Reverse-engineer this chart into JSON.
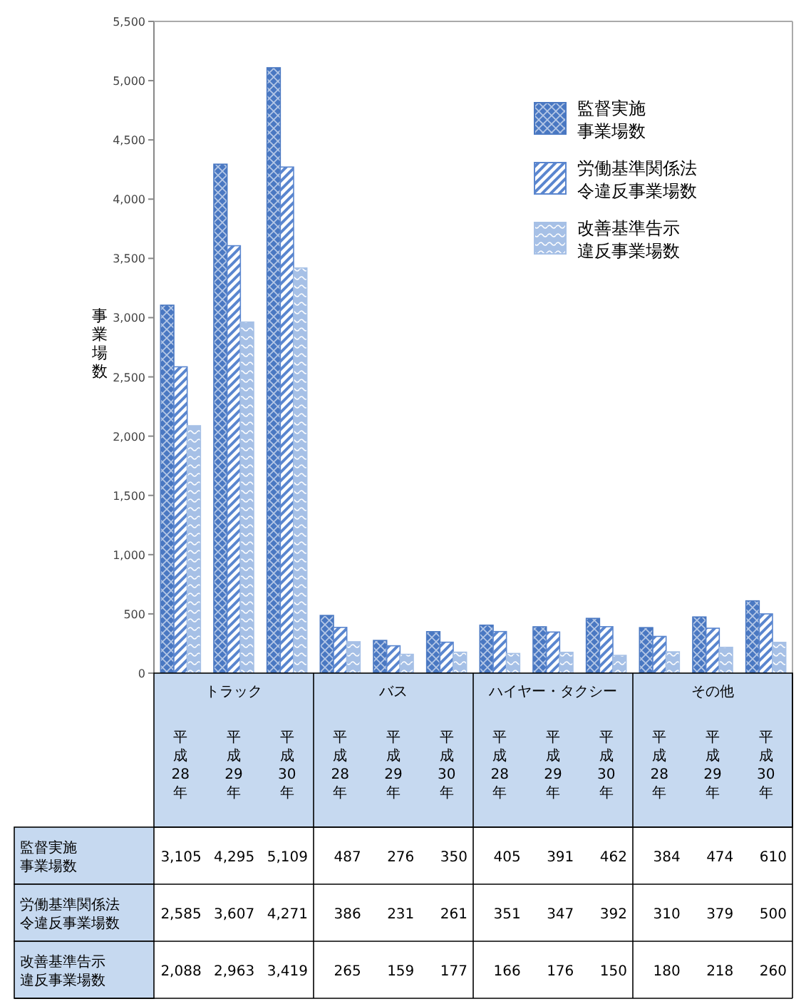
{
  "chart_data": {
    "type": "bar",
    "ylabel": "事業場数",
    "categories": [
      "平成28年",
      "平成29年",
      "平成30年",
      "平成28年",
      "平成29年",
      "平成30年",
      "平成28年",
      "平成29年",
      "平成30年",
      "平成28年",
      "平成29年",
      "平成30年"
    ],
    "annotations": [
      "トラック",
      "バス",
      "ハイヤー・タクシー",
      "その他"
    ],
    "series": [
      {
        "name": "監督実施事業場数",
        "color": "#4a78c2",
        "values": [
          3105,
          4295,
          5109,
          487,
          276,
          350,
          405,
          391,
          462,
          384,
          474,
          610
        ],
        "value_labels": [
          "3,105",
          "4,295",
          "5,109",
          "487",
          "276",
          "350",
          "405",
          "391",
          "462",
          "384",
          "474",
          "610"
        ]
      },
      {
        "name": "労働基準関係法令違反事業場数",
        "color": "#5a86cf",
        "values": [
          2585,
          3607,
          4271,
          386,
          231,
          261,
          351,
          347,
          392,
          310,
          379,
          500
        ],
        "value_labels": [
          "2,585",
          "3,607",
          "4,271",
          "386",
          "231",
          "261",
          "351",
          "347",
          "392",
          "310",
          "379",
          "500"
        ]
      },
      {
        "name": "改善基準告示違反事業場数",
        "color": "#a6c0e6",
        "values": [
          2088,
          2963,
          3419,
          265,
          159,
          177,
          166,
          176,
          150,
          180,
          218,
          260
        ],
        "value_labels": [
          "2,088",
          "2,963",
          "3,419",
          "265",
          "159",
          "177",
          "166",
          "176",
          "150",
          "180",
          "218",
          "260"
        ]
      }
    ],
    "ylim": [
      0,
      5500
    ],
    "yticks": [
      {
        "value": 0,
        "label": "0"
      },
      {
        "value": 500,
        "label": "500"
      },
      {
        "value": 1000,
        "label": "1,000"
      },
      {
        "value": 1500,
        "label": "1,500"
      },
      {
        "value": 2000,
        "label": "2,000"
      },
      {
        "value": 2500,
        "label": "2,500"
      },
      {
        "value": 3000,
        "label": "3,000"
      },
      {
        "value": 3500,
        "label": "3,500"
      },
      {
        "value": 4000,
        "label": "4,000"
      },
      {
        "value": 4500,
        "label": "4,500"
      },
      {
        "value": 5000,
        "label": "5,000"
      },
      {
        "value": 5500,
        "label": "5,500"
      }
    ],
    "grid": false,
    "legend": "top right"
  }
}
